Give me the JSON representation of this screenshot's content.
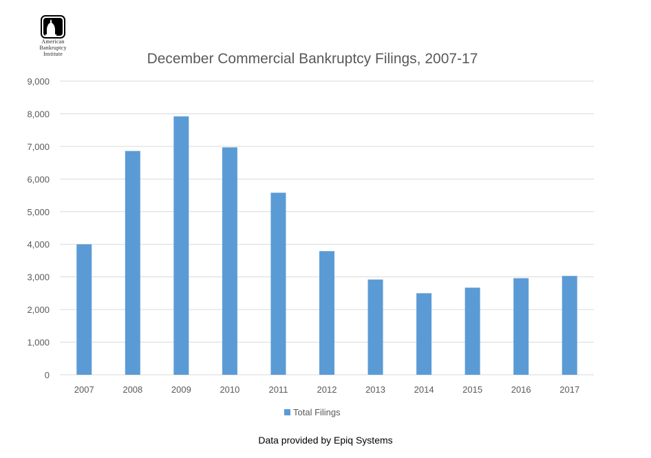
{
  "logo": {
    "lines": [
      "American",
      "Bankruptcy",
      "Institute"
    ]
  },
  "chart_data": {
    "type": "bar",
    "title": "December Commercial Bankruptcy Filings, 2007-17",
    "xlabel": "",
    "ylabel": "",
    "categories": [
      "2007",
      "2008",
      "2009",
      "2010",
      "2011",
      "2012",
      "2013",
      "2014",
      "2015",
      "2016",
      "2017"
    ],
    "series": [
      {
        "name": "Total Filings",
        "color": "#5b9bd5",
        "values": [
          4000,
          6860,
          7920,
          6970,
          5580,
          3790,
          2920,
          2500,
          2670,
          2960,
          3030
        ]
      }
    ],
    "ylim": [
      0,
      9000
    ],
    "yticks": [
      "0",
      "1,000",
      "2,000",
      "3,000",
      "4,000",
      "5,000",
      "6,000",
      "7,000",
      "8,000",
      "9,000"
    ],
    "ytick_values": [
      0,
      1000,
      2000,
      3000,
      4000,
      5000,
      6000,
      7000,
      8000,
      9000
    ],
    "grid": true,
    "legend_position": "bottom"
  },
  "footer": {
    "source": "Data provided by Epiq Systems"
  }
}
